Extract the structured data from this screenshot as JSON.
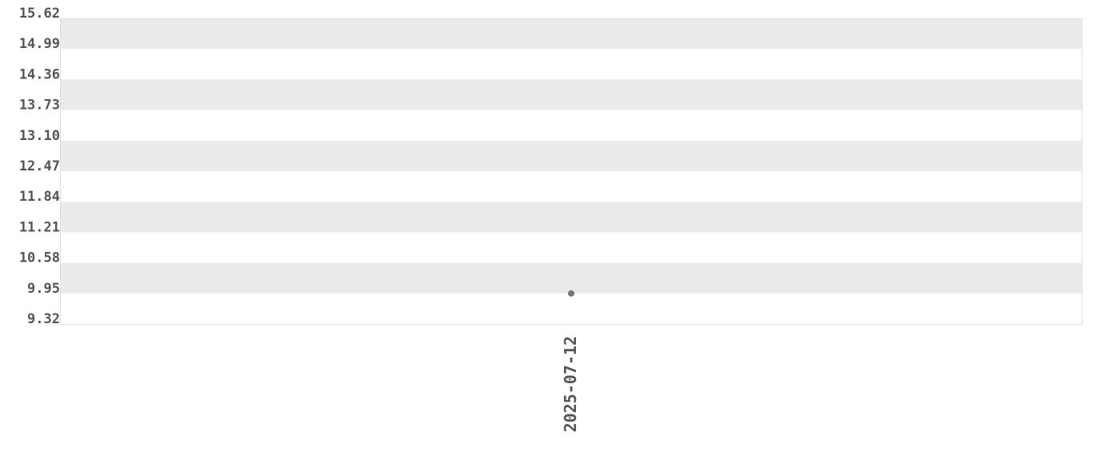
{
  "chart_data": {
    "type": "scatter",
    "title": "",
    "xlabel": "",
    "ylabel": "",
    "x_categories": [
      "2025-07-12"
    ],
    "points": [
      {
        "x": "2025-07-12",
        "y": 9.95
      }
    ],
    "ylim": [
      9.32,
      15.62
    ],
    "y_ticks": [
      "9.32",
      "9.95",
      "10.58",
      "11.21",
      "11.84",
      "12.47",
      "13.10",
      "13.73",
      "14.36",
      "14.99",
      "15.62"
    ],
    "grid": "alternating horizontal bands",
    "legend": "none",
    "colors": {
      "point": "#777777",
      "band": "#ebebeb",
      "text": "#555555",
      "border": "#dddddd"
    }
  }
}
